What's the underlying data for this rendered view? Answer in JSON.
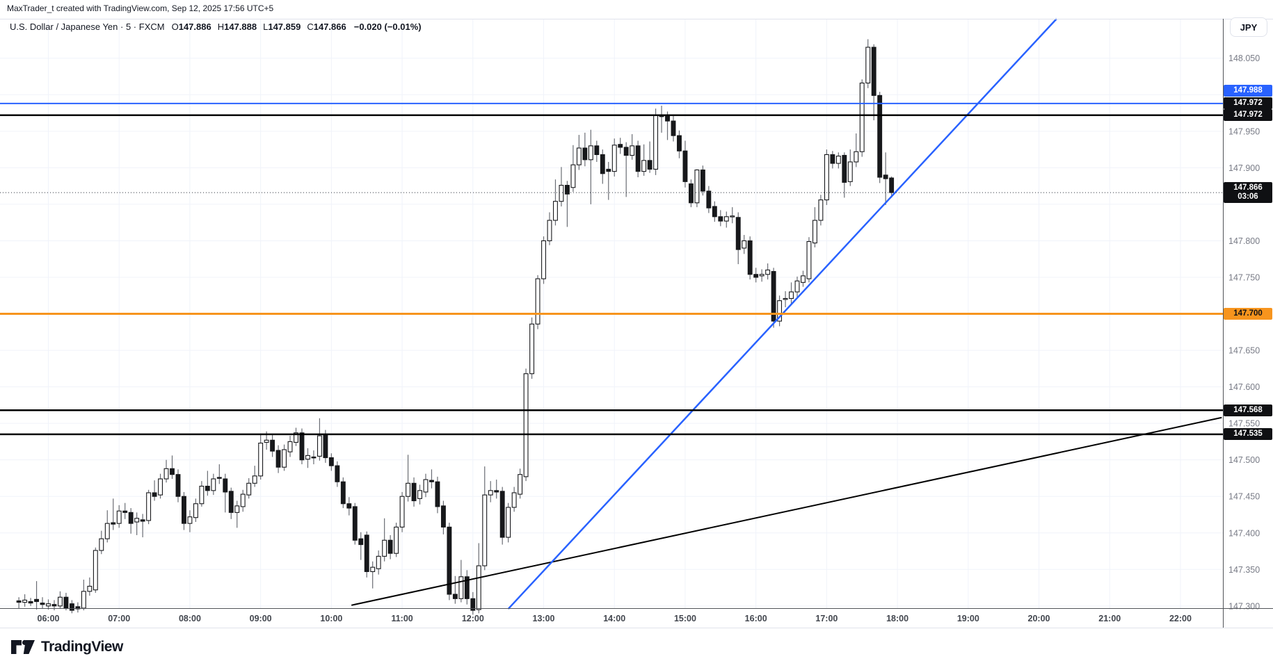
{
  "attribution": "MaxTrader_t created with TradingView.com, Sep 12, 2025 17:56 UTC+5",
  "legend": {
    "symbol": "U.S. Dollar / Japanese Yen",
    "interval": "5",
    "exchange": "FXCM",
    "o_label": "O",
    "o": "147.886",
    "h_label": "H",
    "h": "147.888",
    "l_label": "L",
    "l": "147.859",
    "c_label": "C",
    "c": "147.866",
    "change": "−0.020 (−0.01%)"
  },
  "price_axis": {
    "currency": "JPY",
    "visible_labels": [
      148.05,
      147.95,
      147.9,
      147.8,
      147.75,
      147.65,
      147.6,
      147.55,
      147.5,
      147.45,
      147.4,
      147.35,
      147.3
    ],
    "badges": [
      {
        "text": "147.988",
        "bg": "#2962ff",
        "fg": "#ffffff",
        "stack": 2
      },
      {
        "text": "147.972",
        "bg": "#0f1013",
        "fg": "#ffffff",
        "stack": 1
      },
      {
        "text": "147.972",
        "bg": "#0f1013",
        "fg": "#ffffff",
        "stack": 0
      },
      {
        "text": "147.866",
        "sub": "03:06",
        "bg": "#0f1013",
        "fg": "#ffffff",
        "price": 147.866
      },
      {
        "text": "147.700",
        "bg": "#f7941d",
        "fg": "#101114",
        "price": 147.7
      },
      {
        "text": "147.568",
        "bg": "#0f1013",
        "fg": "#ffffff",
        "price": 147.568
      },
      {
        "text": "147.535",
        "bg": "#0f1013",
        "fg": "#ffffff",
        "price": 147.535
      }
    ]
  },
  "time_axis": {
    "labels": [
      "06:00",
      "07:00",
      "08:00",
      "09:00",
      "10:00",
      "11:00",
      "12:00",
      "13:00",
      "14:00",
      "15:00",
      "16:00",
      "17:00",
      "18:00",
      "19:00",
      "20:00",
      "21:00",
      "22:00"
    ]
  },
  "logo_text": "TradingView",
  "colors": {
    "up_fill": "#ffffff",
    "down_fill": "#17181b",
    "candle_border": "#17181b",
    "wick": "#6a6d74",
    "grid": "#f0f3fa",
    "blue": "#2962ff",
    "orange": "#f7941d",
    "black_line": "#000000",
    "axis_price_text": "#787b86",
    "axis_time_text": "#42464e",
    "dotted": "#2a2e39"
  },
  "chart_data": {
    "type": "candlestick",
    "title": "U.S. Dollar / Japanese Yen · 5 · FXCM",
    "ylim": [
      147.297,
      148.104
    ],
    "xlim_minutes": [
      319,
      1356
    ],
    "grid": {
      "price_min": 147.3,
      "price_max": 148.05,
      "price_step": 0.05,
      "hour_min": 6,
      "hour_max": 22
    },
    "ohlc_last": {
      "open": 147.886,
      "high": 147.888,
      "low": 147.859,
      "close": 147.866
    },
    "current_price_line": {
      "price": 147.866,
      "countdown": "03:06"
    },
    "horizontal_lines": [
      {
        "price": 147.988,
        "color": "#2962ff",
        "width": 2
      },
      {
        "price": 147.972,
        "color": "#000000",
        "width": 2.5
      },
      {
        "price": 147.972,
        "color": "#000000",
        "width": 2.5
      },
      {
        "price": 147.7,
        "color": "#f7941d",
        "width": 3
      },
      {
        "price": 147.568,
        "color": "#000000",
        "width": 2.5
      },
      {
        "price": 147.535,
        "color": "#000000",
        "width": 2.5
      }
    ],
    "trend_lines": [
      {
        "x1_time": "10:17",
        "y1_price": 147.301,
        "x2_time": "22:35",
        "y2_price": 147.558,
        "color": "#000000",
        "width": 2
      },
      {
        "x1_time": "12:30",
        "y1_price": 147.296,
        "x2_time": "20:15",
        "y2_price": 148.104,
        "color": "#2962ff",
        "width": 2.5
      }
    ],
    "candles": [
      [
        "05:35",
        147.307,
        147.312,
        147.297,
        147.305
      ],
      [
        "05:40",
        147.305,
        147.316,
        147.299,
        147.308
      ],
      [
        "05:45",
        147.306,
        147.311,
        147.3,
        147.304
      ],
      [
        "05:50",
        147.309,
        147.334,
        147.295,
        147.306
      ],
      [
        "05:55",
        147.304,
        147.312,
        147.296,
        147.302
      ],
      [
        "06:00",
        147.3,
        147.309,
        147.295,
        147.303
      ],
      [
        "06:05",
        147.302,
        147.308,
        147.294,
        147.3
      ],
      [
        "06:10",
        147.3,
        147.32,
        147.297,
        147.312
      ],
      [
        "06:15",
        147.312,
        147.318,
        147.294,
        147.297
      ],
      [
        "06:20",
        147.303,
        147.308,
        147.29,
        147.294
      ],
      [
        "06:25",
        147.299,
        147.305,
        147.291,
        147.296
      ],
      [
        "06:30",
        147.297,
        147.336,
        147.294,
        147.32
      ],
      [
        "06:35",
        147.32,
        147.339,
        147.314,
        147.327
      ],
      [
        "06:40",
        147.322,
        147.38,
        147.318,
        147.376
      ],
      [
        "06:45",
        147.376,
        147.403,
        147.371,
        147.392
      ],
      [
        "06:50",
        147.392,
        147.431,
        147.387,
        147.413
      ],
      [
        "06:55",
        147.414,
        147.447,
        147.404,
        147.412
      ],
      [
        "07:00",
        147.413,
        147.438,
        147.407,
        147.43
      ],
      [
        "07:05",
        147.43,
        147.441,
        147.419,
        147.428
      ],
      [
        "07:10",
        147.428,
        147.434,
        147.399,
        147.413
      ],
      [
        "07:15",
        147.415,
        147.428,
        147.397,
        147.42
      ],
      [
        "07:20",
        147.418,
        147.426,
        147.394,
        147.416
      ],
      [
        "07:25",
        147.417,
        147.459,
        147.412,
        147.455
      ],
      [
        "07:30",
        147.455,
        147.472,
        147.444,
        147.45
      ],
      [
        "07:35",
        147.452,
        147.481,
        147.447,
        147.474
      ],
      [
        "07:40",
        147.474,
        147.5,
        147.469,
        147.488
      ],
      [
        "07:45",
        147.488,
        147.506,
        147.474,
        147.48
      ],
      [
        "07:50",
        147.48,
        147.487,
        147.442,
        147.45
      ],
      [
        "07:55",
        147.45,
        147.456,
        147.404,
        147.413
      ],
      [
        "08:00",
        147.413,
        147.431,
        147.401,
        147.422
      ],
      [
        "08:05",
        147.421,
        147.447,
        147.415,
        147.44
      ],
      [
        "08:10",
        147.44,
        147.471,
        147.436,
        147.464
      ],
      [
        "08:15",
        147.464,
        147.485,
        147.451,
        147.458
      ],
      [
        "08:20",
        147.458,
        147.481,
        147.452,
        147.474
      ],
      [
        "08:25",
        147.476,
        147.494,
        147.467,
        147.475
      ],
      [
        "08:30",
        147.474,
        147.481,
        147.428,
        147.456
      ],
      [
        "08:35",
        147.457,
        147.462,
        147.419,
        147.428
      ],
      [
        "08:40",
        147.428,
        147.444,
        147.407,
        147.437
      ],
      [
        "08:45",
        147.436,
        147.459,
        147.429,
        147.453
      ],
      [
        "08:50",
        147.452,
        147.475,
        147.447,
        147.468
      ],
      [
        "08:55",
        147.468,
        147.492,
        147.463,
        147.478
      ],
      [
        "09:00",
        147.478,
        147.536,
        147.473,
        147.523
      ],
      [
        "09:05",
        147.524,
        147.539,
        147.514,
        147.527
      ],
      [
        "09:10",
        147.527,
        147.534,
        147.504,
        147.512
      ],
      [
        "09:15",
        147.513,
        147.52,
        147.482,
        147.49
      ],
      [
        "09:20",
        147.49,
        147.521,
        147.485,
        147.514
      ],
      [
        "09:25",
        147.511,
        147.533,
        147.504,
        147.525
      ],
      [
        "09:30",
        147.524,
        147.544,
        147.519,
        147.537
      ],
      [
        "09:35",
        147.537,
        147.543,
        147.494,
        147.5
      ],
      [
        "09:40",
        147.501,
        147.516,
        147.489,
        147.506
      ],
      [
        "09:45",
        147.504,
        147.513,
        147.494,
        147.503
      ],
      [
        "09:50",
        147.505,
        147.557,
        147.499,
        147.533
      ],
      [
        "09:55",
        147.534,
        147.541,
        147.496,
        147.503
      ],
      [
        "10:00",
        147.503,
        147.509,
        147.485,
        147.492
      ],
      [
        "10:05",
        147.492,
        147.498,
        147.463,
        147.47
      ],
      [
        "10:10",
        147.47,
        147.476,
        147.434,
        147.44
      ],
      [
        "10:15",
        147.44,
        147.449,
        147.424,
        147.434
      ],
      [
        "10:20",
        147.436,
        147.441,
        147.384,
        147.39
      ],
      [
        "10:25",
        147.392,
        147.401,
        147.363,
        147.384
      ],
      [
        "10:30",
        147.397,
        147.402,
        147.339,
        147.347
      ],
      [
        "10:35",
        147.347,
        147.361,
        147.324,
        147.353
      ],
      [
        "10:40",
        147.351,
        147.376,
        147.343,
        147.368
      ],
      [
        "10:45",
        147.368,
        147.42,
        147.361,
        147.39
      ],
      [
        "10:50",
        147.39,
        147.397,
        147.364,
        147.372
      ],
      [
        "10:55",
        147.372,
        147.414,
        147.367,
        147.408
      ],
      [
        "11:00",
        147.408,
        147.456,
        147.401,
        147.45
      ],
      [
        "11:05",
        147.45,
        147.507,
        147.443,
        147.468
      ],
      [
        "11:10",
        147.468,
        147.476,
        147.436,
        147.444
      ],
      [
        "11:15",
        147.447,
        147.466,
        147.439,
        147.458
      ],
      [
        "11:20",
        147.456,
        147.481,
        147.449,
        147.473
      ],
      [
        "11:25",
        147.472,
        147.487,
        147.461,
        147.47
      ],
      [
        "11:30",
        147.47,
        147.477,
        147.427,
        147.436
      ],
      [
        "11:35",
        147.437,
        147.444,
        147.398,
        147.408
      ],
      [
        "11:40",
        147.408,
        147.414,
        147.308,
        147.316
      ],
      [
        "11:45",
        147.316,
        147.341,
        147.303,
        147.31
      ],
      [
        "11:50",
        147.31,
        147.363,
        147.305,
        147.34
      ],
      [
        "11:55",
        147.34,
        147.349,
        147.302,
        147.31
      ],
      [
        "12:00",
        147.31,
        147.319,
        147.288,
        147.294
      ],
      [
        "12:05",
        147.295,
        147.386,
        147.29,
        147.355
      ],
      [
        "12:10",
        147.355,
        147.491,
        147.349,
        147.452
      ],
      [
        "12:15",
        147.452,
        147.471,
        147.442,
        147.458
      ],
      [
        "12:20",
        147.458,
        147.473,
        147.447,
        147.456
      ],
      [
        "12:25",
        147.457,
        147.463,
        147.384,
        147.394
      ],
      [
        "12:30",
        147.394,
        147.441,
        147.387,
        147.435
      ],
      [
        "12:35",
        147.435,
        147.463,
        147.429,
        147.455
      ],
      [
        "12:40",
        147.453,
        147.488,
        147.447,
        147.48
      ],
      [
        "12:45",
        147.477,
        147.625,
        147.471,
        147.618
      ],
      [
        "12:50",
        147.618,
        147.695,
        147.611,
        147.686
      ],
      [
        "12:55",
        147.686,
        147.753,
        147.679,
        147.748
      ],
      [
        "13:00",
        147.748,
        147.806,
        147.741,
        147.8
      ],
      [
        "13:05",
        147.8,
        147.839,
        147.794,
        147.828
      ],
      [
        "13:10",
        147.828,
        147.884,
        147.821,
        147.854
      ],
      [
        "13:15",
        147.854,
        147.901,
        147.847,
        147.876
      ],
      [
        "13:20",
        147.876,
        147.882,
        147.819,
        147.864
      ],
      [
        "13:25",
        147.873,
        147.931,
        147.867,
        147.904
      ],
      [
        "13:30",
        147.904,
        147.945,
        147.897,
        147.927
      ],
      [
        "13:35",
        147.927,
        147.948,
        147.902,
        147.911
      ],
      [
        "13:40",
        147.911,
        147.952,
        147.85,
        147.93
      ],
      [
        "13:45",
        147.93,
        147.937,
        147.908,
        147.918
      ],
      [
        "13:50",
        147.918,
        147.925,
        147.878,
        147.892
      ],
      [
        "13:55",
        147.898,
        147.908,
        147.856,
        147.895
      ],
      [
        "14:00",
        147.895,
        147.94,
        147.888,
        147.931
      ],
      [
        "14:05",
        147.932,
        147.941,
        147.919,
        147.928
      ],
      [
        "14:10",
        147.928,
        147.935,
        147.86,
        147.917
      ],
      [
        "14:15",
        147.917,
        147.946,
        147.911,
        147.93
      ],
      [
        "14:20",
        147.93,
        147.937,
        147.887,
        147.895
      ],
      [
        "14:25",
        147.895,
        147.932,
        147.889,
        147.91
      ],
      [
        "14:30",
        147.91,
        147.936,
        147.893,
        147.898
      ],
      [
        "14:35",
        147.898,
        147.981,
        147.89,
        147.972
      ],
      [
        "14:40",
        147.972,
        147.985,
        147.948,
        147.97
      ],
      [
        "14:45",
        147.972,
        147.977,
        147.938,
        147.964
      ],
      [
        "14:50",
        147.964,
        147.971,
        147.936,
        147.944
      ],
      [
        "14:55",
        147.944,
        147.951,
        147.913,
        147.923
      ],
      [
        "15:00",
        147.923,
        147.937,
        147.873,
        147.881
      ],
      [
        "15:05",
        147.878,
        147.884,
        147.846,
        147.852
      ],
      [
        "15:10",
        147.852,
        147.898,
        147.846,
        147.897
      ],
      [
        "15:15",
        147.897,
        147.903,
        147.862,
        147.868
      ],
      [
        "15:20",
        147.868,
        147.875,
        147.838,
        147.845
      ],
      [
        "15:25",
        147.847,
        147.854,
        147.826,
        147.833
      ],
      [
        "15:30",
        147.833,
        147.842,
        147.82,
        147.827
      ],
      [
        "15:35",
        147.827,
        147.84,
        147.818,
        147.833
      ],
      [
        "15:40",
        147.833,
        147.846,
        147.824,
        147.834
      ],
      [
        "15:45",
        147.832,
        147.839,
        147.768,
        147.788
      ],
      [
        "15:50",
        147.79,
        147.808,
        147.782,
        147.8
      ],
      [
        "15:55",
        147.8,
        147.806,
        147.747,
        147.754
      ],
      [
        "16:00",
        147.754,
        147.763,
        147.743,
        147.75
      ],
      [
        "16:05",
        147.752,
        147.761,
        147.744,
        147.754
      ],
      [
        "16:10",
        147.754,
        147.769,
        147.747,
        147.76
      ],
      [
        "16:15",
        147.758,
        147.763,
        147.681,
        147.69
      ],
      [
        "16:20",
        147.69,
        147.725,
        147.683,
        147.718
      ],
      [
        "16:25",
        147.72,
        147.731,
        147.709,
        147.721
      ],
      [
        "16:30",
        147.721,
        147.743,
        147.714,
        147.73
      ],
      [
        "16:35",
        147.73,
        147.751,
        147.723,
        147.745
      ],
      [
        "16:40",
        147.743,
        147.759,
        147.737,
        147.752
      ],
      [
        "16:45",
        147.748,
        147.805,
        147.743,
        147.799
      ],
      [
        "16:50",
        147.797,
        147.846,
        147.791,
        147.828
      ],
      [
        "16:55",
        147.828,
        147.863,
        147.821,
        147.856
      ],
      [
        "17:00",
        147.856,
        147.925,
        147.849,
        147.918
      ],
      [
        "17:05",
        147.918,
        147.923,
        147.899,
        147.906
      ],
      [
        "17:10",
        147.906,
        147.921,
        147.899,
        147.916
      ],
      [
        "17:15",
        147.917,
        147.921,
        147.859,
        147.88
      ],
      [
        "17:20",
        147.881,
        147.925,
        147.875,
        147.908
      ],
      [
        "17:25",
        147.908,
        147.947,
        147.901,
        147.922
      ],
      [
        "17:30",
        147.922,
        148.021,
        147.915,
        148.016
      ],
      [
        "17:35",
        148.016,
        148.076,
        148.009,
        148.065
      ],
      [
        "17:40",
        148.065,
        148.069,
        147.965,
        147.999
      ],
      [
        "17:45",
        147.999,
        148.004,
        147.879,
        147.887
      ],
      [
        "17:50",
        147.89,
        147.921,
        147.849,
        147.885
      ],
      [
        "17:55",
        147.886,
        147.888,
        147.859,
        147.866
      ]
    ]
  }
}
